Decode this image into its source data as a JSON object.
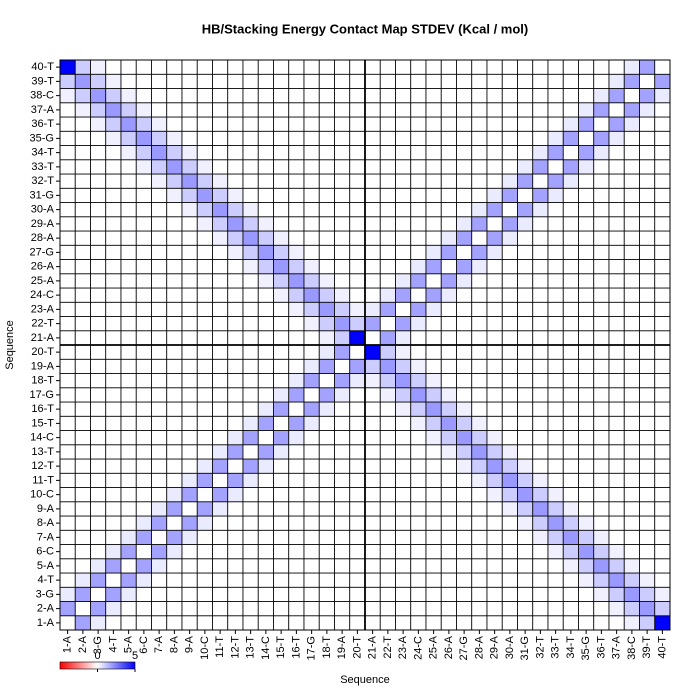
{
  "chart_data": {
    "type": "heatmap",
    "title": "HB/Stacking Energy Contact Map STDEV (Kcal / mol)",
    "x_label": "Sequence",
    "y_label": "Sequence",
    "categories": [
      "1-A",
      "2-A",
      "3-G",
      "4-T",
      "5-A",
      "6-C",
      "7-A",
      "8-A",
      "9-A",
      "10-C",
      "11-T",
      "12-T",
      "13-T",
      "14-C",
      "15-T",
      "16-T",
      "17-G",
      "18-T",
      "19-A",
      "20-T",
      "21-A",
      "22-T",
      "23-A",
      "24-C",
      "25-A",
      "26-A",
      "27-G",
      "28-A",
      "29-A",
      "30-A",
      "31-G",
      "32-T",
      "33-T",
      "34-T",
      "35-G",
      "36-T",
      "37-A",
      "38-C",
      "39-T",
      "40-T"
    ],
    "z": [
      [
        0,
        1.8,
        0.4,
        0,
        0,
        0,
        0,
        0,
        0,
        0,
        0,
        0,
        0,
        0,
        0,
        0,
        0,
        0,
        0,
        0,
        0,
        0,
        0,
        0,
        0,
        0,
        0,
        0,
        0,
        0,
        0,
        0,
        0,
        0,
        0,
        0,
        0,
        0.3,
        1,
        5
      ],
      [
        1.8,
        0,
        1.8,
        0.4,
        0,
        0,
        0,
        0,
        0,
        0,
        0,
        0,
        0,
        0,
        0,
        0,
        0,
        0,
        0,
        0,
        0,
        0,
        0,
        0,
        0,
        0,
        0,
        0,
        0,
        0,
        0,
        0,
        0,
        0,
        0,
        0,
        0.3,
        1,
        2,
        1
      ],
      [
        0.4,
        1.8,
        0,
        1.8,
        0.4,
        0,
        0,
        0,
        0,
        0,
        0,
        0,
        0,
        0,
        0,
        0,
        0,
        0,
        0,
        0,
        0,
        0,
        0,
        0,
        0,
        0,
        0,
        0,
        0,
        0,
        0,
        0,
        0,
        0,
        0,
        0.3,
        1,
        2,
        1,
        0.3
      ],
      [
        0,
        0.4,
        1.8,
        0,
        1.8,
        0.4,
        0,
        0,
        0,
        0,
        0,
        0,
        0,
        0,
        0,
        0,
        0,
        0,
        0,
        0,
        0,
        0,
        0,
        0,
        0,
        0,
        0,
        0,
        0,
        0,
        0,
        0,
        0,
        0,
        0.3,
        1,
        2,
        1,
        0.3,
        0
      ],
      [
        0,
        0,
        0.4,
        1.8,
        0,
        1.8,
        0.4,
        0,
        0,
        0,
        0,
        0,
        0,
        0,
        0,
        0,
        0,
        0,
        0,
        0,
        0,
        0,
        0,
        0,
        0,
        0,
        0,
        0,
        0,
        0,
        0,
        0,
        0,
        0.3,
        1,
        2,
        1,
        0.3,
        0,
        0
      ],
      [
        0,
        0,
        0,
        0.4,
        1.8,
        0,
        1.8,
        0.4,
        0,
        0,
        0,
        0,
        0,
        0,
        0,
        0,
        0,
        0,
        0,
        0,
        0,
        0,
        0,
        0,
        0,
        0,
        0,
        0,
        0,
        0,
        0,
        0,
        0.3,
        1,
        2,
        1,
        0.3,
        0,
        0,
        0
      ],
      [
        0,
        0,
        0,
        0,
        0.4,
        1.8,
        0,
        1.8,
        0.4,
        0,
        0,
        0,
        0,
        0,
        0,
        0,
        0,
        0,
        0,
        0,
        0,
        0,
        0,
        0,
        0,
        0,
        0,
        0,
        0,
        0,
        0,
        0.3,
        1,
        2,
        1,
        0.3,
        0,
        0,
        0,
        0
      ],
      [
        0,
        0,
        0,
        0,
        0,
        0.4,
        1.8,
        0,
        1.8,
        0.4,
        0,
        0,
        0,
        0,
        0,
        0,
        0,
        0,
        0,
        0,
        0,
        0,
        0,
        0,
        0,
        0,
        0,
        0,
        0,
        0,
        0.3,
        1,
        2,
        1,
        0.3,
        0,
        0,
        0,
        0,
        0
      ],
      [
        0,
        0,
        0,
        0,
        0,
        0,
        0.4,
        1.8,
        0,
        1.8,
        0.4,
        0,
        0,
        0,
        0,
        0,
        0,
        0,
        0,
        0,
        0,
        0,
        0,
        0,
        0,
        0,
        0,
        0,
        0,
        0.3,
        1,
        2,
        1,
        0.3,
        0,
        0,
        0,
        0,
        0,
        0
      ],
      [
        0,
        0,
        0,
        0,
        0,
        0,
        0,
        0.4,
        1.8,
        0,
        1.8,
        0.4,
        0,
        0,
        0,
        0,
        0,
        0,
        0,
        0,
        0,
        0,
        0,
        0,
        0,
        0,
        0,
        0,
        0.3,
        1,
        2,
        1,
        0.3,
        0,
        0,
        0,
        0,
        0,
        0,
        0
      ],
      [
        0,
        0,
        0,
        0,
        0,
        0,
        0,
        0,
        0.4,
        1.8,
        0,
        1.8,
        0.4,
        0,
        0,
        0,
        0,
        0,
        0,
        0,
        0,
        0,
        0,
        0,
        0,
        0,
        0,
        0.3,
        1,
        2,
        1,
        0.3,
        0,
        0,
        0,
        0,
        0,
        0,
        0,
        0
      ],
      [
        0,
        0,
        0,
        0,
        0,
        0,
        0,
        0,
        0,
        0.4,
        1.8,
        0,
        1.8,
        0.4,
        0,
        0,
        0,
        0,
        0,
        0,
        0,
        0,
        0,
        0,
        0,
        0,
        0.3,
        1,
        2,
        1,
        0.3,
        0,
        0,
        0,
        0,
        0,
        0,
        0,
        0,
        0
      ],
      [
        0,
        0,
        0,
        0,
        0,
        0,
        0,
        0,
        0,
        0,
        0.4,
        1.8,
        0,
        1.8,
        0.4,
        0,
        0,
        0,
        0,
        0,
        0,
        0,
        0,
        0,
        0,
        0.3,
        1,
        2,
        1,
        0.3,
        0,
        0,
        0,
        0,
        0,
        0,
        0,
        0,
        0,
        0
      ],
      [
        0,
        0,
        0,
        0,
        0,
        0,
        0,
        0,
        0,
        0,
        0,
        0.4,
        1.8,
        0,
        1.8,
        0.4,
        0,
        0,
        0,
        0,
        0,
        0,
        0,
        0,
        0.3,
        1,
        2,
        1,
        0.3,
        0,
        0,
        0,
        0,
        0,
        0,
        0,
        0,
        0,
        0,
        0
      ],
      [
        0,
        0,
        0,
        0,
        0,
        0,
        0,
        0,
        0,
        0,
        0,
        0,
        0.4,
        1.8,
        0,
        1.8,
        0.4,
        0,
        0,
        0,
        0,
        0,
        0,
        0.3,
        1,
        2,
        1,
        0.3,
        0,
        0,
        0,
        0,
        0,
        0,
        0,
        0,
        0,
        0,
        0,
        0
      ],
      [
        0,
        0,
        0,
        0,
        0,
        0,
        0,
        0,
        0,
        0,
        0,
        0,
        0,
        0.4,
        1.8,
        0,
        1.8,
        0.4,
        0,
        0,
        0,
        0,
        0.3,
        1,
        2,
        1,
        0.3,
        0,
        0,
        0,
        0,
        0,
        0,
        0,
        0,
        0,
        0,
        0,
        0,
        0
      ],
      [
        0,
        0,
        0,
        0,
        0,
        0,
        0,
        0,
        0,
        0,
        0,
        0,
        0,
        0,
        0.4,
        1.8,
        0,
        1.8,
        0.4,
        0,
        0,
        0.3,
        1,
        2,
        1,
        0.3,
        0,
        0,
        0,
        0,
        0,
        0,
        0,
        0,
        0,
        0,
        0,
        0,
        0,
        0
      ],
      [
        0,
        0,
        0,
        0,
        0,
        0,
        0,
        0,
        0,
        0,
        0,
        0,
        0,
        0,
        0,
        0.4,
        1.8,
        0,
        1.8,
        0.4,
        0.3,
        1,
        2,
        1,
        0.3,
        0,
        0,
        0,
        0,
        0,
        0,
        0,
        0,
        0,
        0,
        0,
        0,
        0,
        0,
        0
      ],
      [
        0,
        0,
        0,
        0,
        0,
        0,
        0,
        0,
        0,
        0,
        0,
        0,
        0,
        0,
        0,
        0,
        0.4,
        1.8,
        0,
        1.8,
        1,
        2,
        1,
        0.3,
        0,
        0,
        0,
        0,
        0,
        0,
        0,
        0,
        0,
        0,
        0,
        0,
        0,
        0,
        0,
        0
      ],
      [
        0,
        0,
        0,
        0,
        0,
        0,
        0,
        0,
        0,
        0,
        0,
        0,
        0,
        0,
        0,
        0,
        0,
        0.4,
        1.8,
        0,
        5,
        1,
        0.3,
        0,
        0,
        0,
        0,
        0,
        0,
        0,
        0,
        0,
        0,
        0,
        0,
        0,
        0,
        0,
        0,
        0
      ],
      [
        0,
        0,
        0,
        0,
        0,
        0,
        0,
        0,
        0,
        0,
        0,
        0,
        0,
        0,
        0,
        0,
        0,
        0.3,
        1,
        5,
        0,
        1.8,
        0.4,
        0,
        0,
        0,
        0,
        0,
        0,
        0,
        0,
        0,
        0,
        0,
        0,
        0,
        0,
        0,
        0,
        0
      ],
      [
        0,
        0,
        0,
        0,
        0,
        0,
        0,
        0,
        0,
        0,
        0,
        0,
        0,
        0,
        0,
        0,
        0.3,
        1,
        2,
        1,
        1.8,
        0,
        1.8,
        0.4,
        0,
        0,
        0,
        0,
        0,
        0,
        0,
        0,
        0,
        0,
        0,
        0,
        0,
        0,
        0,
        0
      ],
      [
        0,
        0,
        0,
        0,
        0,
        0,
        0,
        0,
        0,
        0,
        0,
        0,
        0,
        0,
        0,
        0.3,
        1,
        2,
        1,
        0.3,
        0.4,
        1.8,
        0,
        1.8,
        0.4,
        0,
        0,
        0,
        0,
        0,
        0,
        0,
        0,
        0,
        0,
        0,
        0,
        0,
        0,
        0
      ],
      [
        0,
        0,
        0,
        0,
        0,
        0,
        0,
        0,
        0,
        0,
        0,
        0,
        0,
        0,
        0.3,
        1,
        2,
        1,
        0.3,
        0,
        0,
        0.4,
        1.8,
        0,
        1.8,
        0.4,
        0,
        0,
        0,
        0,
        0,
        0,
        0,
        0,
        0,
        0,
        0,
        0,
        0,
        0
      ],
      [
        0,
        0,
        0,
        0,
        0,
        0,
        0,
        0,
        0,
        0,
        0,
        0,
        0,
        0.3,
        1,
        2,
        1,
        0.3,
        0,
        0,
        0,
        0,
        0.4,
        1.8,
        0,
        1.8,
        0.4,
        0,
        0,
        0,
        0,
        0,
        0,
        0,
        0,
        0,
        0,
        0,
        0,
        0
      ],
      [
        0,
        0,
        0,
        0,
        0,
        0,
        0,
        0,
        0,
        0,
        0,
        0,
        0.3,
        1,
        2,
        1,
        0.3,
        0,
        0,
        0,
        0,
        0,
        0,
        0.4,
        1.8,
        0,
        1.8,
        0.4,
        0,
        0,
        0,
        0,
        0,
        0,
        0,
        0,
        0,
        0,
        0,
        0
      ],
      [
        0,
        0,
        0,
        0,
        0,
        0,
        0,
        0,
        0,
        0,
        0,
        0.3,
        1,
        2,
        1,
        0.3,
        0,
        0,
        0,
        0,
        0,
        0,
        0,
        0,
        0.4,
        1.8,
        0,
        1.8,
        0.4,
        0,
        0,
        0,
        0,
        0,
        0,
        0,
        0,
        0,
        0,
        0
      ],
      [
        0,
        0,
        0,
        0,
        0,
        0,
        0,
        0,
        0,
        0,
        0.3,
        1,
        2,
        1,
        0.3,
        0,
        0,
        0,
        0,
        0,
        0,
        0,
        0,
        0,
        0,
        0.4,
        1.8,
        0,
        1.8,
        0.4,
        0,
        0,
        0,
        0,
        0,
        0,
        0,
        0,
        0,
        0
      ],
      [
        0,
        0,
        0,
        0,
        0,
        0,
        0,
        0,
        0,
        0.3,
        1,
        2,
        1,
        0.3,
        0,
        0,
        0,
        0,
        0,
        0,
        0,
        0,
        0,
        0,
        0,
        0,
        0.4,
        1.8,
        0,
        1.8,
        0.4,
        0,
        0,
        0,
        0,
        0,
        0,
        0,
        0,
        0
      ],
      [
        0,
        0,
        0,
        0,
        0,
        0,
        0,
        0,
        0.3,
        1,
        2,
        1,
        0.3,
        0,
        0,
        0,
        0,
        0,
        0,
        0,
        0,
        0,
        0,
        0,
        0,
        0,
        0,
        0.4,
        1.8,
        0,
        1.8,
        0.4,
        0,
        0,
        0,
        0,
        0,
        0,
        0,
        0
      ],
      [
        0,
        0,
        0,
        0,
        0,
        0,
        0,
        0.3,
        1,
        2,
        1,
        0.3,
        0,
        0,
        0,
        0,
        0,
        0,
        0,
        0,
        0,
        0,
        0,
        0,
        0,
        0,
        0,
        0,
        0.4,
        1.8,
        0,
        1.8,
        0.4,
        0,
        0,
        0,
        0,
        0,
        0,
        0
      ],
      [
        0,
        0,
        0,
        0,
        0,
        0,
        0.3,
        1,
        2,
        1,
        0.3,
        0,
        0,
        0,
        0,
        0,
        0,
        0,
        0,
        0,
        0,
        0,
        0,
        0,
        0,
        0,
        0,
        0,
        0,
        0.4,
        1.8,
        0,
        1.8,
        0.4,
        0,
        0,
        0,
        0,
        0,
        0
      ],
      [
        0,
        0,
        0,
        0,
        0,
        0.3,
        1,
        2,
        1,
        0.3,
        0,
        0,
        0,
        0,
        0,
        0,
        0,
        0,
        0,
        0,
        0,
        0,
        0,
        0,
        0,
        0,
        0,
        0,
        0,
        0,
        0.4,
        1.8,
        0,
        1.8,
        0.4,
        0,
        0,
        0,
        0,
        0
      ],
      [
        0,
        0,
        0,
        0,
        0.3,
        1,
        2,
        1,
        0.3,
        0,
        0,
        0,
        0,
        0,
        0,
        0,
        0,
        0,
        0,
        0,
        0,
        0,
        0,
        0,
        0,
        0,
        0,
        0,
        0,
        0,
        0,
        0.4,
        1.8,
        0,
        1.8,
        0.4,
        0,
        0,
        0,
        0
      ],
      [
        0,
        0,
        0,
        0.3,
        1,
        2,
        1,
        0.3,
        0,
        0,
        0,
        0,
        0,
        0,
        0,
        0,
        0,
        0,
        0,
        0,
        0,
        0,
        0,
        0,
        0,
        0,
        0,
        0,
        0,
        0,
        0,
        0,
        0.4,
        1.8,
        0,
        1.8,
        0.4,
        0,
        0,
        0
      ],
      [
        0,
        0,
        0.3,
        1,
        2,
        1,
        0.3,
        0,
        0,
        0,
        0,
        0,
        0,
        0,
        0,
        0,
        0,
        0,
        0,
        0,
        0,
        0,
        0,
        0,
        0,
        0,
        0,
        0,
        0,
        0,
        0,
        0,
        0,
        0.4,
        1.8,
        0,
        1.8,
        0.4,
        0,
        0
      ],
      [
        0,
        0.3,
        1,
        2,
        1,
        0.3,
        0,
        0,
        0,
        0,
        0,
        0,
        0,
        0,
        0,
        0,
        0,
        0,
        0,
        0,
        0,
        0,
        0,
        0,
        0,
        0,
        0,
        0,
        0,
        0,
        0,
        0,
        0,
        0,
        0.4,
        1.8,
        0,
        1.8,
        0.4,
        0
      ],
      [
        0.3,
        1,
        2,
        1,
        0.3,
        0,
        0,
        0,
        0,
        0,
        0,
        0,
        0,
        0,
        0,
        0,
        0,
        0,
        0,
        0,
        0,
        0,
        0,
        0,
        0,
        0,
        0,
        0,
        0,
        0,
        0,
        0,
        0,
        0,
        0,
        0.4,
        1.8,
        0,
        1.8,
        0.4
      ],
      [
        1,
        2,
        1,
        0.3,
        0,
        0,
        0,
        0,
        0,
        0,
        0,
        0,
        0,
        0,
        0,
        0,
        0,
        0,
        0,
        0,
        0,
        0,
        0,
        0,
        0,
        0,
        0,
        0,
        0,
        0,
        0,
        0,
        0,
        0,
        0,
        0,
        0.4,
        1.8,
        0,
        1.8
      ],
      [
        5,
        1,
        0.3,
        0,
        0,
        0,
        0,
        0,
        0,
        0,
        0,
        0,
        0,
        0,
        0,
        0,
        0,
        0,
        0,
        0,
        0,
        0,
        0,
        0,
        0,
        0,
        0,
        0,
        0,
        0,
        0,
        0,
        0,
        0,
        0,
        0,
        0,
        0.4,
        1.8,
        0
      ]
    ],
    "colors": [
      "#ff0000",
      "#ffffff",
      "#0000ff"
    ],
    "colorbar_lim": [
      -5,
      5
    ],
    "colorbar_ticks": [
      0,
      5
    ]
  }
}
